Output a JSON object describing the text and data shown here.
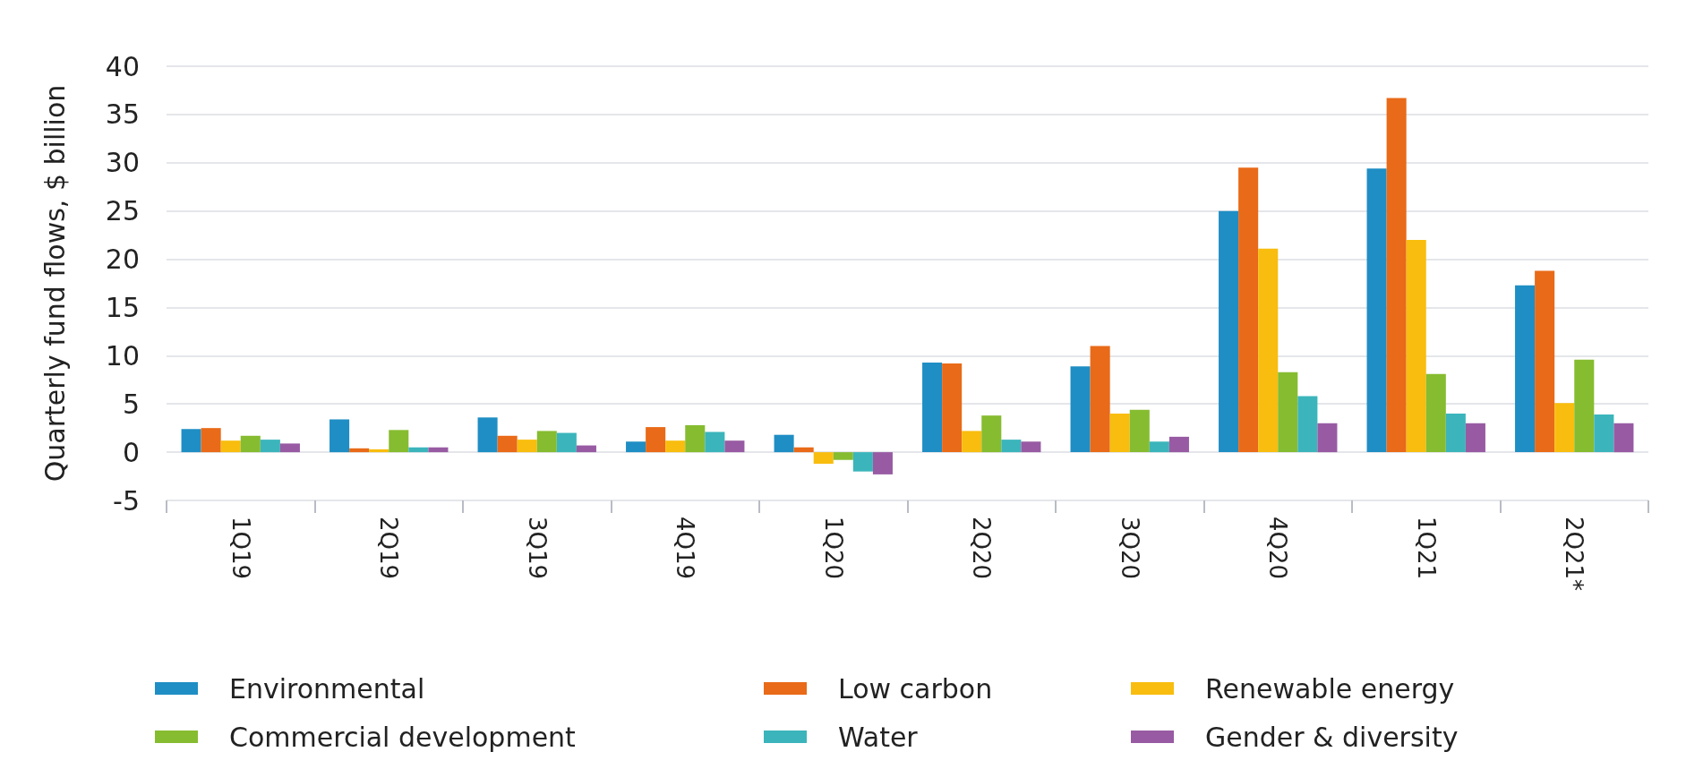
{
  "chart_data": {
    "type": "bar",
    "ylabel": "Quarterly fund flows, $ billion",
    "categories": [
      "1Q19",
      "2Q19",
      "3Q19",
      "4Q19",
      "1Q20",
      "2Q20",
      "3Q20",
      "4Q20",
      "1Q21",
      "2Q21*"
    ],
    "series": [
      {
        "name": "Environmental",
        "color": "#1f8ec4",
        "values": [
          2.4,
          3.4,
          3.6,
          1.1,
          1.8,
          9.3,
          8.9,
          25.0,
          29.4,
          17.3
        ]
      },
      {
        "name": "Low carbon",
        "color": "#e96a18",
        "values": [
          2.5,
          0.4,
          1.7,
          2.6,
          0.5,
          9.2,
          11.0,
          29.5,
          36.7,
          18.8
        ]
      },
      {
        "name": "Renewable energy",
        "color": "#f8bd0e",
        "values": [
          1.2,
          0.3,
          1.3,
          1.2,
          -1.2,
          2.2,
          4.0,
          21.1,
          22.0,
          5.1
        ]
      },
      {
        "name": "Commercial development",
        "color": "#86bc30",
        "values": [
          1.7,
          2.3,
          2.2,
          2.8,
          -0.8,
          3.8,
          4.4,
          8.3,
          8.1,
          9.6
        ]
      },
      {
        "name": "Water",
        "color": "#3bb5bb",
        "values": [
          1.3,
          0.5,
          2.0,
          2.1,
          -2.0,
          1.3,
          1.1,
          5.8,
          4.0,
          3.9
        ]
      },
      {
        "name": "Gender & diversity",
        "color": "#985ba3",
        "values": [
          0.9,
          0.5,
          0.7,
          1.2,
          -2.3,
          1.1,
          1.6,
          3.0,
          3.0,
          3.0
        ]
      }
    ],
    "ylim": [
      -5,
      40
    ],
    "yticks": [
      -5,
      0,
      5,
      10,
      15,
      20,
      25,
      30,
      35,
      40
    ],
    "grid": "y",
    "legend": "bottom"
  }
}
